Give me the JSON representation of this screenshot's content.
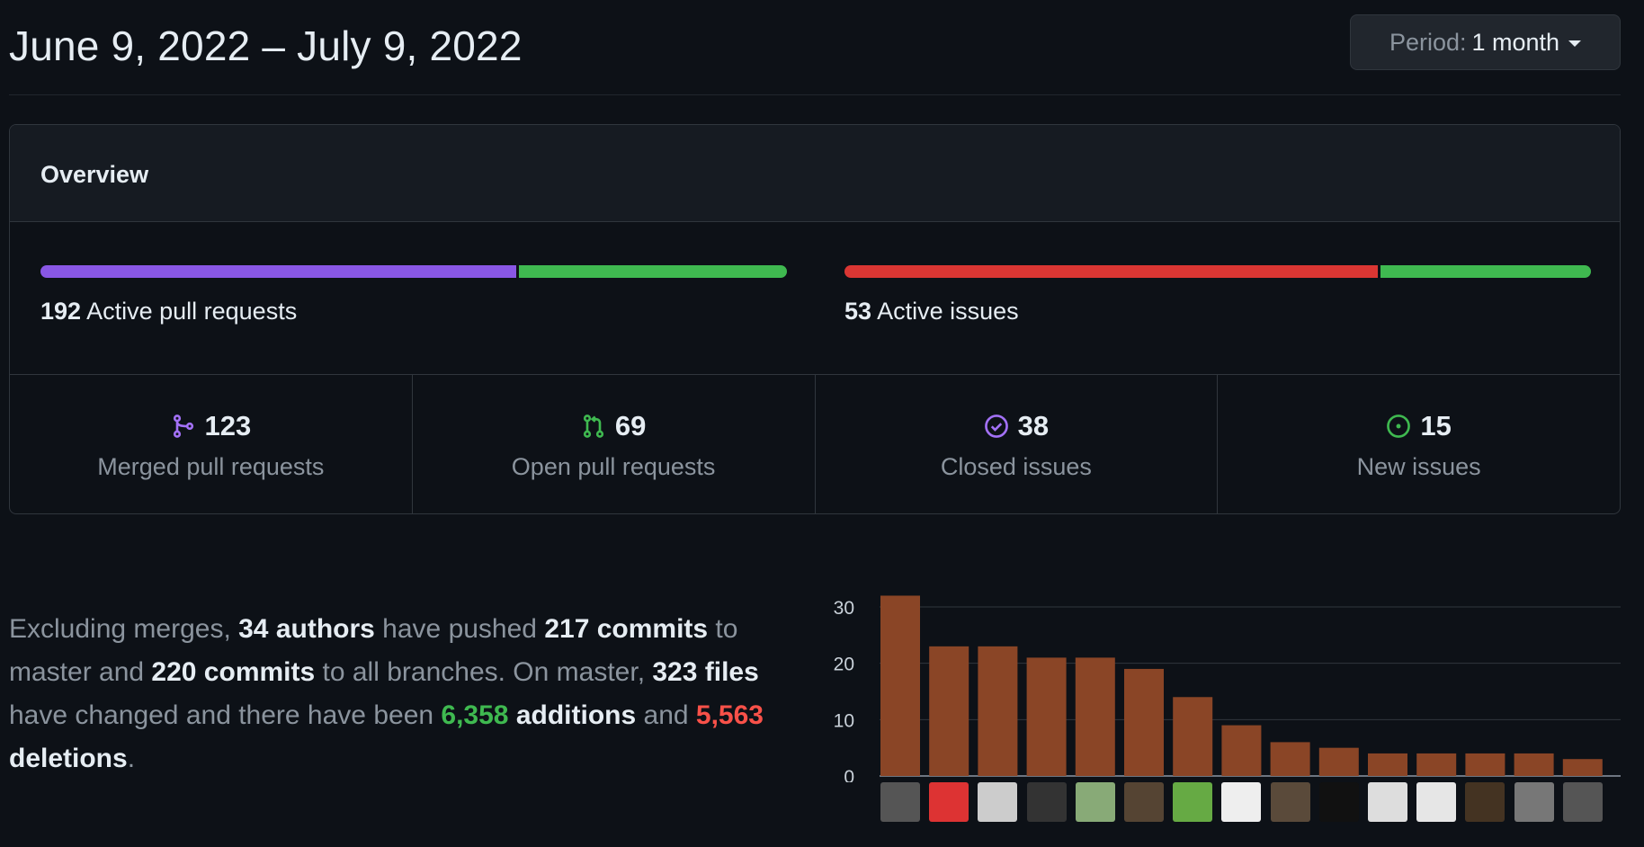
{
  "header": {
    "date_range": "June 9, 2022 – July 9, 2022",
    "period_label": "Period:",
    "period_value": "1 month"
  },
  "overview": {
    "title": "Overview",
    "pull_requests": {
      "active_count": "192",
      "active_label": "Active pull requests",
      "merged_fraction": 0.64,
      "colors": [
        "#8957e5",
        "#3fb950"
      ]
    },
    "issues": {
      "active_count": "53",
      "active_label": "Active issues",
      "closed_fraction": 0.717,
      "colors": [
        "#da3633",
        "#3fb950"
      ]
    },
    "stats": [
      {
        "icon": "git-merge-icon",
        "value": "123",
        "label": "Merged pull requests",
        "color": "#a371f7"
      },
      {
        "icon": "git-pull-request-icon",
        "value": "69",
        "label": "Open pull requests",
        "color": "#3fb950"
      },
      {
        "icon": "issue-closed-icon",
        "value": "38",
        "label": "Closed issues",
        "color": "#a371f7"
      },
      {
        "icon": "issue-opened-icon",
        "value": "15",
        "label": "New issues",
        "color": "#3fb950"
      }
    ]
  },
  "summary": {
    "p1": "Excluding merges, ",
    "authors": "34 authors",
    "p2": " have pushed ",
    "commits_master": "217 commits",
    "p3": " to master and ",
    "commits_all": "220 commits",
    "p4": " to all branches. On master, ",
    "files": "323 files",
    "p5": " have changed and there have been ",
    "additions_num": "6,358",
    "additions_word": "additions",
    "p6": " and ",
    "deletions_num": "5,563",
    "deletions_word": "deletions",
    "p7": "."
  },
  "chart_data": {
    "type": "bar",
    "title": "",
    "xlabel": "",
    "ylabel": "",
    "ylim": [
      0,
      30
    ],
    "yticks": [
      0,
      10,
      20,
      30
    ],
    "values": [
      32,
      23,
      23,
      21,
      21,
      19,
      14,
      9,
      6,
      5,
      4,
      4,
      4,
      4,
      3
    ],
    "bar_color": "#8a4526",
    "grid": true
  },
  "avatar_colors": [
    "#555",
    "#d33",
    "#ccc",
    "#333",
    "#8a7",
    "#543",
    "#6a4",
    "#eee",
    "#5a4a3a",
    "#111",
    "#ddd",
    "#e6e6e6",
    "#432",
    "#777",
    "#555"
  ]
}
